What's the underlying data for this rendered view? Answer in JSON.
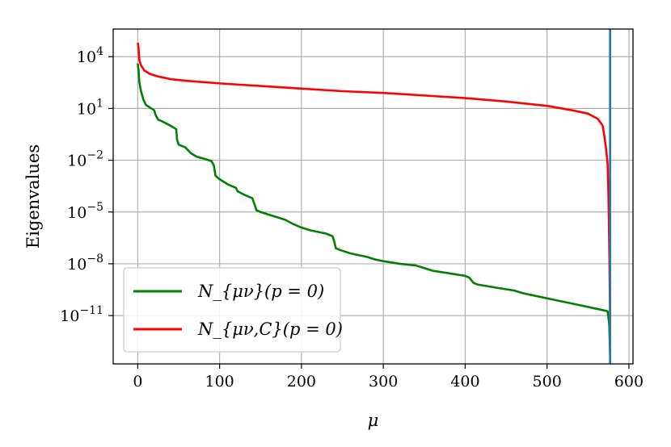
{
  "chart_data": {
    "type": "line",
    "xlabel": "μ",
    "ylabel": "Eigenvalues",
    "y_scale": "log",
    "grid": true,
    "legend_position": "bottom-left",
    "xlim": [
      -30,
      605
    ],
    "ylim_log10": [
      -13.8,
      5.6
    ],
    "x_ticks": [
      0,
      100,
      200,
      300,
      400,
      500,
      600
    ],
    "y_ticks": [
      {
        "exp": 4,
        "label": "10^4"
      },
      {
        "exp": 1,
        "label": "10^1"
      },
      {
        "exp": -2,
        "label": "10^-2"
      },
      {
        "exp": -5,
        "label": "10^-5"
      },
      {
        "exp": -8,
        "label": "10^-8"
      },
      {
        "exp": -11,
        "label": "10^-11"
      }
    ],
    "vline": {
      "x": 577,
      "color": "#1f77b4"
    },
    "series": [
      {
        "name": "N_{μν}(p = 0)",
        "color": "#008000",
        "points_log10": [
          [
            0,
            3.6
          ],
          [
            1,
            3.2
          ],
          [
            2,
            2.5
          ],
          [
            4,
            2.0
          ],
          [
            7,
            1.5
          ],
          [
            10,
            1.2
          ],
          [
            15,
            1.05
          ],
          [
            20,
            0.9
          ],
          [
            22,
            0.6
          ],
          [
            25,
            0.35
          ],
          [
            30,
            0.25
          ],
          [
            40,
            0.0
          ],
          [
            47,
            -0.2
          ],
          [
            48,
            -0.8
          ],
          [
            50,
            -1.1
          ],
          [
            58,
            -1.25
          ],
          [
            65,
            -1.6
          ],
          [
            72,
            -1.8
          ],
          [
            80,
            -1.9
          ],
          [
            90,
            -2.05
          ],
          [
            93,
            -2.3
          ],
          [
            95,
            -2.9
          ],
          [
            100,
            -3.1
          ],
          [
            110,
            -3.4
          ],
          [
            120,
            -3.6
          ],
          [
            122,
            -3.8
          ],
          [
            130,
            -4.0
          ],
          [
            140,
            -4.2
          ],
          [
            143,
            -4.6
          ],
          [
            145,
            -4.9
          ],
          [
            150,
            -5.0
          ],
          [
            160,
            -5.15
          ],
          [
            170,
            -5.3
          ],
          [
            180,
            -5.45
          ],
          [
            190,
            -5.7
          ],
          [
            200,
            -5.9
          ],
          [
            210,
            -6.05
          ],
          [
            220,
            -6.15
          ],
          [
            230,
            -6.25
          ],
          [
            238,
            -6.4
          ],
          [
            240,
            -6.7
          ],
          [
            242,
            -7.1
          ],
          [
            247,
            -7.2
          ],
          [
            260,
            -7.4
          ],
          [
            280,
            -7.6
          ],
          [
            290,
            -7.75
          ],
          [
            300,
            -7.85
          ],
          [
            320,
            -8.0
          ],
          [
            340,
            -8.1
          ],
          [
            350,
            -8.25
          ],
          [
            360,
            -8.4
          ],
          [
            380,
            -8.55
          ],
          [
            400,
            -8.7
          ],
          [
            405,
            -8.8
          ],
          [
            410,
            -9.1
          ],
          [
            415,
            -9.2
          ],
          [
            440,
            -9.4
          ],
          [
            460,
            -9.55
          ],
          [
            470,
            -9.7
          ],
          [
            480,
            -9.8
          ],
          [
            500,
            -10.0
          ],
          [
            520,
            -10.2
          ],
          [
            540,
            -10.4
          ],
          [
            560,
            -10.6
          ],
          [
            574,
            -10.75
          ],
          [
            576,
            -11.5
          ],
          [
            577,
            -13.2
          ]
        ]
      },
      {
        "name": "N_{μν,C}(p = 0)",
        "color": "#ff0000",
        "points_log10": [
          [
            0,
            4.8
          ],
          [
            1,
            4.5
          ],
          [
            2,
            3.8
          ],
          [
            4,
            3.5
          ],
          [
            8,
            3.2
          ],
          [
            15,
            3.0
          ],
          [
            25,
            2.85
          ],
          [
            40,
            2.7
          ],
          [
            60,
            2.6
          ],
          [
            100,
            2.45
          ],
          [
            150,
            2.3
          ],
          [
            200,
            2.15
          ],
          [
            250,
            2.0
          ],
          [
            300,
            1.9
          ],
          [
            350,
            1.75
          ],
          [
            400,
            1.6
          ],
          [
            450,
            1.4
          ],
          [
            500,
            1.15
          ],
          [
            530,
            0.9
          ],
          [
            550,
            0.7
          ],
          [
            562,
            0.4
          ],
          [
            568,
            0.0
          ],
          [
            570,
            -0.6
          ],
          [
            572,
            -1.3
          ],
          [
            574,
            -2.2
          ],
          [
            575,
            -4.0
          ],
          [
            576,
            -7.0
          ],
          [
            577,
            -11.0
          ]
        ]
      }
    ]
  }
}
